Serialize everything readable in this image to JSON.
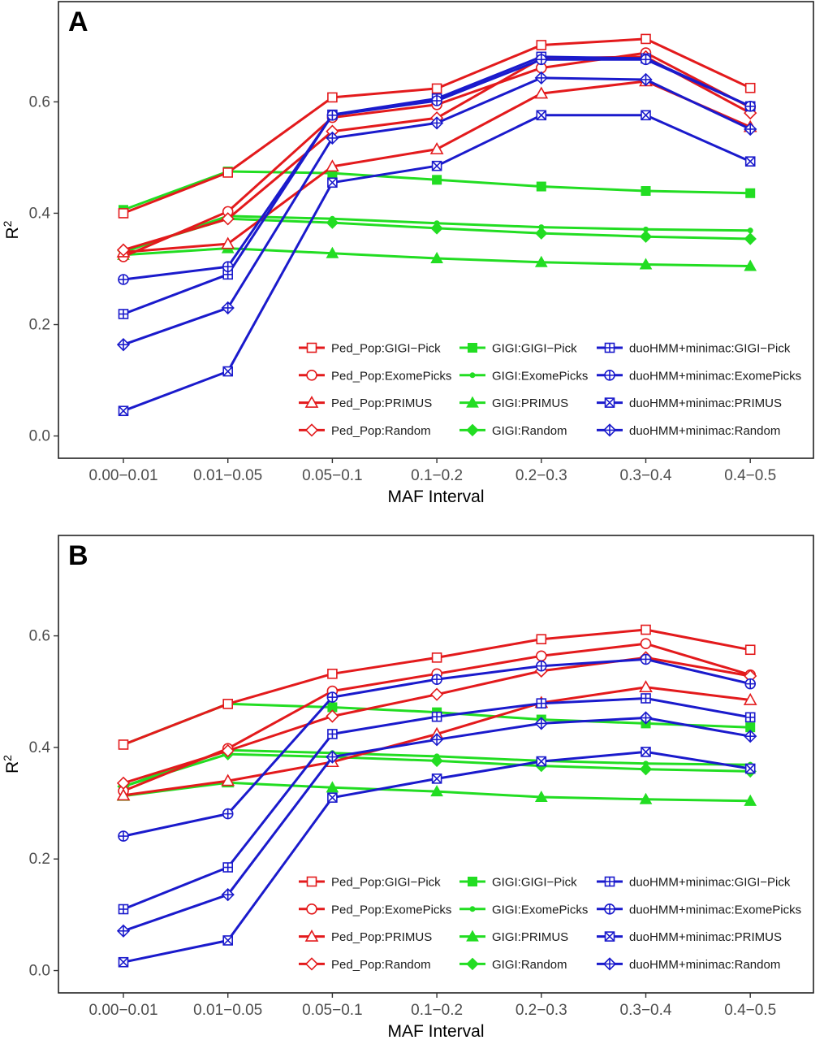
{
  "series_styles": [
    {
      "key": "pedpop_pick",
      "name": "Ped_Pop:GIGI−Pick",
      "color": "#e31a1c",
      "marker": "square-open"
    },
    {
      "key": "pedpop_exome",
      "name": "Ped_Pop:ExomePicks",
      "color": "#e31a1c",
      "marker": "circle-open"
    },
    {
      "key": "pedpop_primus",
      "name": "Ped_Pop:PRIMUS",
      "color": "#e31a1c",
      "marker": "triangle-open"
    },
    {
      "key": "pedpop_random",
      "name": "Ped_Pop:Random",
      "color": "#e31a1c",
      "marker": "diamond-open"
    },
    {
      "key": "gigi_pick",
      "name": "GIGI:GIGI−Pick",
      "color": "#22dd22",
      "marker": "square-filled"
    },
    {
      "key": "gigi_exome",
      "name": "GIGI:ExomePicks",
      "color": "#22dd22",
      "marker": "dot"
    },
    {
      "key": "gigi_primus",
      "name": "GIGI:PRIMUS",
      "color": "#22dd22",
      "marker": "triangle-filled"
    },
    {
      "key": "gigi_random",
      "name": "GIGI:Random",
      "color": "#22dd22",
      "marker": "diamond-filled"
    },
    {
      "key": "duo_pick",
      "name": "duoHMM+minimac:GIGI−Pick",
      "color": "#1a1acc",
      "marker": "square-plus"
    },
    {
      "key": "duo_exome",
      "name": "duoHMM+minimac:ExomePicks",
      "color": "#1a1acc",
      "marker": "circle-plus"
    },
    {
      "key": "duo_primus",
      "name": "duoHMM+minimac:PRIMUS",
      "color": "#1a1acc",
      "marker": "square-x"
    },
    {
      "key": "duo_random",
      "name": "duoHMM+minimac:Random",
      "color": "#1a1acc",
      "marker": "diamond-plus"
    }
  ],
  "chart_data": [
    {
      "panel": "A",
      "type": "line",
      "title": "",
      "xlabel": "MAF Interval",
      "ylabel": "R",
      "ylabel_superscript": "2",
      "categories": [
        "0.00−0.01",
        "0.01−0.05",
        "0.05−0.1",
        "0.1−0.2",
        "0.2−0.3",
        "0.3−0.4",
        "0.4−0.5"
      ],
      "ylim": [
        -0.04,
        0.78
      ],
      "yticks": [
        0.0,
        0.2,
        0.4,
        0.6
      ],
      "ytick_labels": [
        "0.0",
        "0.2",
        "0.4",
        "0.6"
      ],
      "grid": false,
      "legend_position": "bottom-right",
      "series": [
        {
          "key": "pedpop_pick",
          "values": [
            0.4,
            0.473,
            0.608,
            0.624,
            0.702,
            0.713,
            0.625
          ]
        },
        {
          "key": "pedpop_exome",
          "values": [
            0.322,
            0.403,
            0.572,
            0.595,
            0.661,
            0.688,
            0.59
          ]
        },
        {
          "key": "pedpop_primus",
          "values": [
            0.33,
            0.345,
            0.484,
            0.515,
            0.615,
            0.637,
            0.555
          ]
        },
        {
          "key": "pedpop_random",
          "values": [
            0.334,
            0.39,
            0.547,
            0.571,
            0.678,
            0.681,
            0.58
          ]
        },
        {
          "key": "gigi_pick",
          "values": [
            0.406,
            0.475,
            0.472,
            0.46,
            0.448,
            0.44,
            0.436
          ]
        },
        {
          "key": "gigi_exome",
          "values": [
            0.33,
            0.395,
            0.39,
            0.382,
            0.375,
            0.371,
            0.369
          ]
        },
        {
          "key": "gigi_primus",
          "values": [
            0.325,
            0.337,
            0.328,
            0.319,
            0.312,
            0.308,
            0.305
          ]
        },
        {
          "key": "gigi_random",
          "values": [
            0.333,
            0.39,
            0.383,
            0.373,
            0.364,
            0.358,
            0.354
          ]
        },
        {
          "key": "duo_pick",
          "values": [
            0.219,
            0.29,
            0.577,
            0.606,
            0.681,
            0.678,
            0.592
          ]
        },
        {
          "key": "duo_exome",
          "values": [
            0.281,
            0.304,
            0.576,
            0.602,
            0.676,
            0.676,
            0.592
          ]
        },
        {
          "key": "duo_primus",
          "values": [
            0.045,
            0.116,
            0.455,
            0.485,
            0.576,
            0.576,
            0.493
          ]
        },
        {
          "key": "duo_random",
          "values": [
            0.164,
            0.23,
            0.535,
            0.562,
            0.643,
            0.64,
            0.551
          ]
        }
      ]
    },
    {
      "panel": "B",
      "type": "line",
      "title": "",
      "xlabel": "MAF Interval",
      "ylabel": "R",
      "ylabel_superscript": "2",
      "categories": [
        "0.00−0.01",
        "0.01−0.05",
        "0.05−0.1",
        "0.1−0.2",
        "0.2−0.3",
        "0.3−0.4",
        "0.4−0.5"
      ],
      "ylim": [
        -0.04,
        0.78
      ],
      "yticks": [
        0.0,
        0.2,
        0.4,
        0.6
      ],
      "ytick_labels": [
        "0.0",
        "0.2",
        "0.4",
        "0.6"
      ],
      "grid": false,
      "legend_position": "bottom-right",
      "series": [
        {
          "key": "pedpop_pick",
          "values": [
            0.405,
            0.478,
            0.532,
            0.561,
            0.594,
            0.611,
            0.575
          ]
        },
        {
          "key": "pedpop_exome",
          "values": [
            0.322,
            0.398,
            0.501,
            0.532,
            0.564,
            0.586,
            0.53
          ]
        },
        {
          "key": "pedpop_primus",
          "values": [
            0.314,
            0.34,
            0.374,
            0.424,
            0.48,
            0.508,
            0.485
          ]
        },
        {
          "key": "pedpop_random",
          "values": [
            0.336,
            0.394,
            0.456,
            0.495,
            0.537,
            0.561,
            0.528
          ]
        },
        {
          "key": "gigi_pick",
          "values": [
            0.405,
            0.478,
            0.472,
            0.463,
            0.45,
            0.443,
            0.436
          ]
        },
        {
          "key": "gigi_exome",
          "values": [
            0.33,
            0.395,
            0.39,
            0.384,
            0.376,
            0.371,
            0.369
          ]
        },
        {
          "key": "gigi_primus",
          "values": [
            0.313,
            0.337,
            0.328,
            0.321,
            0.311,
            0.307,
            0.304
          ]
        },
        {
          "key": "gigi_random",
          "values": [
            0.33,
            0.388,
            0.383,
            0.376,
            0.367,
            0.361,
            0.357
          ]
        },
        {
          "key": "duo_pick",
          "values": [
            0.11,
            0.185,
            0.424,
            0.455,
            0.479,
            0.488,
            0.454
          ]
        },
        {
          "key": "duo_exome",
          "values": [
            0.241,
            0.281,
            0.49,
            0.522,
            0.546,
            0.558,
            0.514
          ]
        },
        {
          "key": "duo_primus",
          "values": [
            0.015,
            0.054,
            0.31,
            0.344,
            0.375,
            0.392,
            0.362
          ]
        },
        {
          "key": "duo_random",
          "values": [
            0.071,
            0.136,
            0.383,
            0.414,
            0.443,
            0.453,
            0.42
          ]
        }
      ]
    }
  ]
}
